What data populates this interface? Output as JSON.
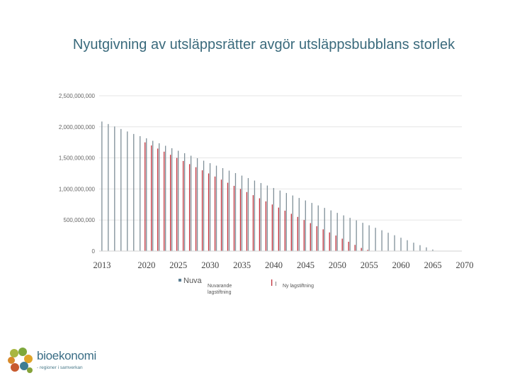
{
  "chart_data": {
    "type": "bar",
    "title": "Nyutgivning av utsläppsrätter avgör utsläppsbubblans storlek",
    "y_ticks": [
      "2,500,000,000",
      "2,000,000,000",
      "1,500,000,000",
      "1,000,000,000",
      "500,000,000",
      "0"
    ],
    "ylim": [
      0,
      2500000000
    ],
    "x_tick_labels": [
      "2013",
      "2020",
      "2025",
      "2030",
      "2035",
      "2040",
      "2045",
      "2050",
      "2055",
      "2060",
      "2065",
      "2070"
    ],
    "x_tick_years": [
      2013,
      2020,
      2025,
      2030,
      2035,
      2040,
      2045,
      2050,
      2055,
      2060,
      2065,
      2070
    ],
    "xlim": [
      2013,
      2070
    ],
    "grid": true,
    "series": [
      {
        "name": "Nuvarande lagstiftning",
        "color": "#7f8f98",
        "x": [
          2013,
          2014,
          2015,
          2016,
          2017,
          2018,
          2019,
          2020,
          2021,
          2022,
          2023,
          2024,
          2025,
          2026,
          2027,
          2028,
          2029,
          2030,
          2031,
          2032,
          2033,
          2034,
          2035,
          2036,
          2037,
          2038,
          2039,
          2040,
          2041,
          2042,
          2043,
          2044,
          2045,
          2046,
          2047,
          2048,
          2049,
          2050,
          2051,
          2052,
          2053,
          2054,
          2055,
          2056,
          2057,
          2058,
          2059,
          2060,
          2061,
          2062,
          2063,
          2064,
          2065,
          2066
        ],
        "values": [
          2085000000,
          2045000000,
          2005000000,
          1965000000,
          1925000000,
          1885000000,
          1850000000,
          1815000000,
          1775000000,
          1735000000,
          1695000000,
          1655000000,
          1615000000,
          1575000000,
          1535000000,
          1495000000,
          1455000000,
          1415000000,
          1375000000,
          1335000000,
          1295000000,
          1255000000,
          1215000000,
          1175000000,
          1135000000,
          1095000000,
          1055000000,
          1015000000,
          975000000,
          935000000,
          895000000,
          855000000,
          815000000,
          775000000,
          735000000,
          695000000,
          655000000,
          615000000,
          575000000,
          535000000,
          495000000,
          455000000,
          415000000,
          375000000,
          335000000,
          295000000,
          255000000,
          215000000,
          175000000,
          135000000,
          95000000,
          60000000,
          25000000,
          5000000
        ]
      },
      {
        "name": "Ny lagstiftning",
        "color": "#c0303a",
        "x": [
          2020,
          2021,
          2022,
          2023,
          2024,
          2025,
          2026,
          2027,
          2028,
          2029,
          2030,
          2031,
          2032,
          2033,
          2034,
          2035,
          2036,
          2037,
          2038,
          2039,
          2040,
          2041,
          2042,
          2043,
          2044,
          2045,
          2046,
          2047,
          2048,
          2049,
          2050,
          2051,
          2052,
          2053,
          2054,
          2055,
          2056
        ],
        "values": [
          1750000000,
          1700000000,
          1650000000,
          1600000000,
          1550000000,
          1500000000,
          1450000000,
          1400000000,
          1350000000,
          1300000000,
          1250000000,
          1200000000,
          1150000000,
          1100000000,
          1050000000,
          1000000000,
          950000000,
          900000000,
          850000000,
          800000000,
          750000000,
          700000000,
          650000000,
          600000000,
          550000000,
          500000000,
          450000000,
          400000000,
          350000000,
          300000000,
          250000000,
          200000000,
          150000000,
          100000000,
          50000000,
          20000000,
          5000000
        ]
      }
    ],
    "legend": [
      {
        "label": "Nuva",
        "color": "#5a7d92",
        "size": "big"
      },
      {
        "label": "Nuvarande lagstiftning",
        "color": "#555555",
        "size": "small"
      },
      {
        "label": "Ny lagstiftning",
        "color": "#c0303a",
        "size": "small"
      }
    ]
  },
  "logo": {
    "name": "bioekonomi",
    "tagline": "- regioner i samverkan"
  }
}
